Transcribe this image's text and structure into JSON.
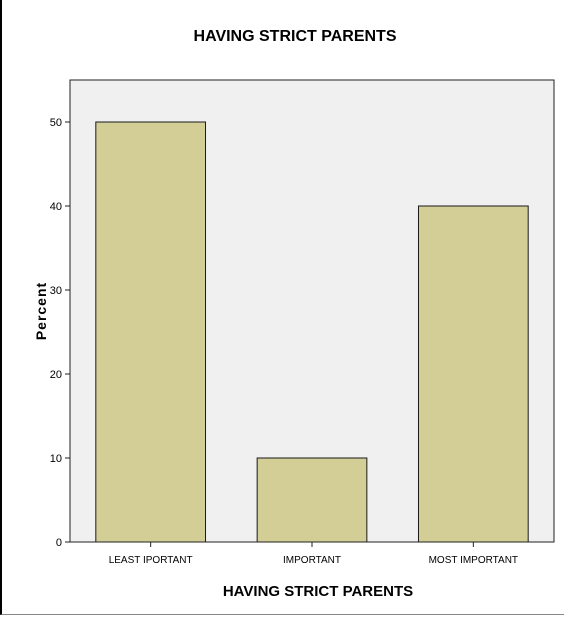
{
  "chart_data": {
    "type": "bar",
    "title": "HAVING STRICT PARENTS",
    "xlabel": "HAVING STRICT PARENTS",
    "ylabel": "Percent",
    "categories": [
      "LEAST IPORTANT",
      "IMPORTANT",
      "MOST IMPORTANT"
    ],
    "values": [
      50,
      10,
      40
    ],
    "ylim": [
      0,
      55
    ],
    "yticks": [
      0,
      10,
      20,
      30,
      40,
      50
    ],
    "grid": false,
    "colors": {
      "bar_fill": "#d3cd96",
      "bar_stroke": "#1a1a1a",
      "plot_background": "#f0f0f0",
      "plot_border": "#222222"
    }
  }
}
